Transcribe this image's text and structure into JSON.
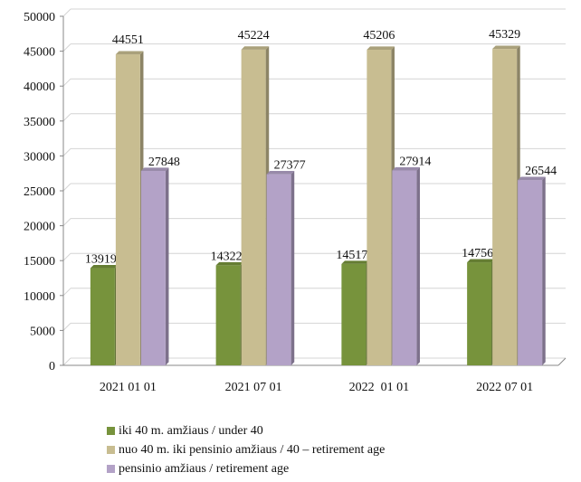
{
  "chart_data": {
    "type": "bar",
    "categories": [
      "2021 01 01",
      "2021 07 01",
      "2022  01 01",
      "2022 07 01"
    ],
    "series": [
      {
        "name": "iki 40 m. amžiaus / under 40",
        "values": [
          13919,
          14322,
          14517,
          14756
        ],
        "color": "#77933c"
      },
      {
        "name": "nuo 40 m. iki pensinio amžiaus / 40 – retirement age",
        "values": [
          44551,
          45224,
          45206,
          45329
        ],
        "color": "#c8bd91"
      },
      {
        "name": "pensinio amžiaus / retirement age",
        "values": [
          27848,
          27377,
          27914,
          26544
        ],
        "color": "#b3a2c7"
      }
    ],
    "yticks": [
      "0",
      "5000",
      "10000",
      "15000",
      "20000",
      "25000",
      "30000",
      "35000",
      "40000",
      "45000",
      "50000"
    ],
    "ylim": [
      0,
      50000
    ],
    "grid": true,
    "legend_position": "bottom-left",
    "data_labels": true,
    "style": "3d-bar"
  },
  "legend": {
    "items": [
      {
        "label": "iki 40 m. amžiaus / under 40",
        "color": "#77933c"
      },
      {
        "label": "nuo 40 m. iki pensinio amžiaus / 40 – retirement age",
        "color": "#c8bd91"
      },
      {
        "label": "pensinio amžiaus / retirement age",
        "color": "#b3a2c7"
      }
    ]
  }
}
